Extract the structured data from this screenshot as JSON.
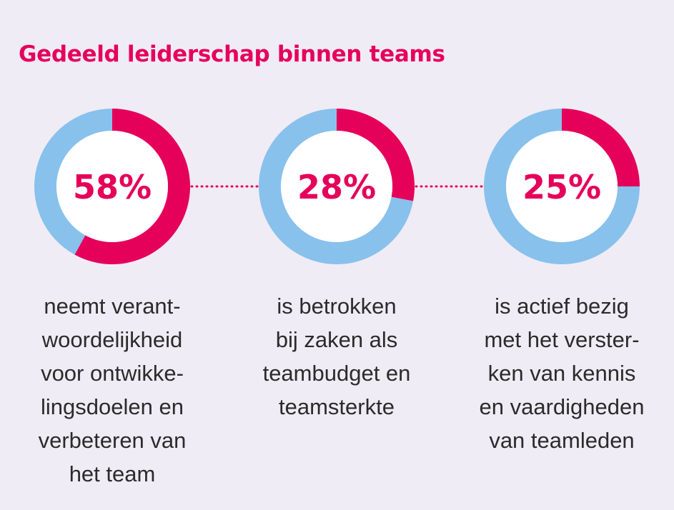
{
  "title": "Gedeeld leiderschap binnen teams",
  "colors": {
    "accent": "#e5005a",
    "remainder": "#88c1ec",
    "inner": "#ffffff",
    "background": "#f0ecf5",
    "connector": "#e5005a"
  },
  "chart_data": {
    "type": "pie",
    "title": "Gedeeld leiderschap binnen teams",
    "unit": "%",
    "items": [
      {
        "value": 58,
        "label": "58%",
        "caption_lines": [
          "neemt verant-",
          "woordelijkheid",
          "voor ontwikke-",
          "lingsdoelen en",
          "verbeteren van",
          "het team"
        ]
      },
      {
        "value": 28,
        "label": "28%",
        "caption_lines": [
          "is betrokken",
          "bij zaken als",
          "teambudget en",
          "teamsterkte"
        ]
      },
      {
        "value": 25,
        "label": "25%",
        "caption_lines": [
          "is actief bezig",
          "met het verster-",
          "ken van kennis",
          "en vaardigheden",
          "van teamleden"
        ]
      }
    ]
  }
}
